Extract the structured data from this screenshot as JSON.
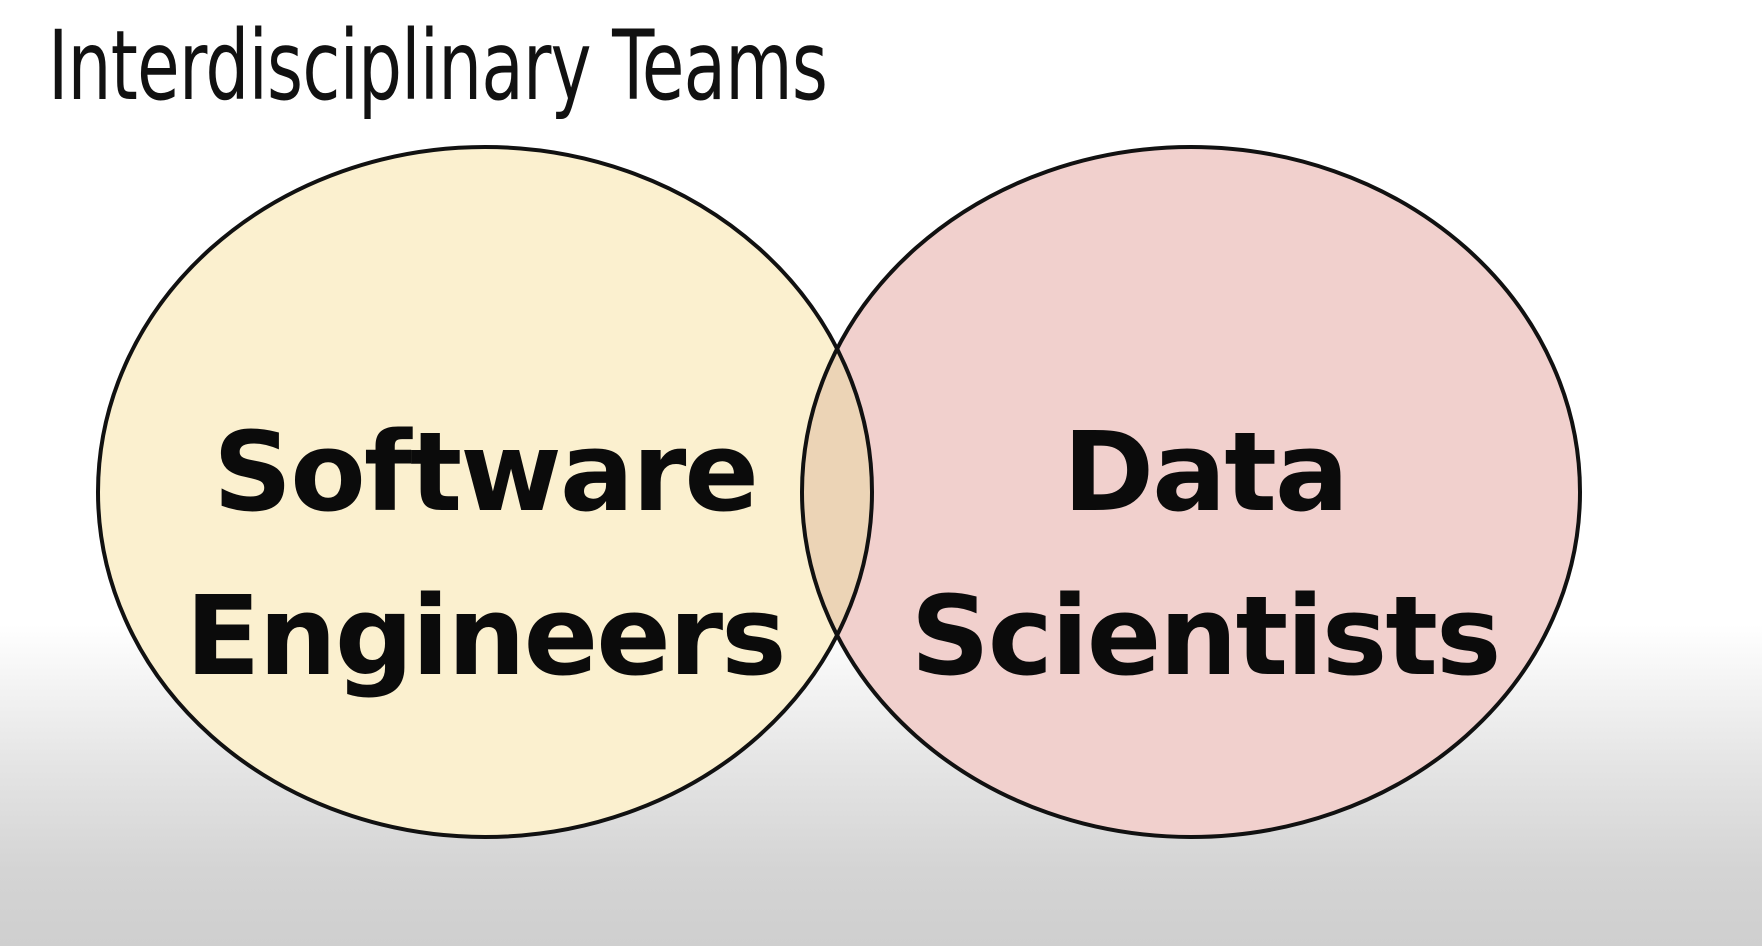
{
  "title": "Interdisciplinary Teams",
  "venn": {
    "left": {
      "line1": "Software",
      "line2": "Engineers",
      "fill": "#fbf0cf"
    },
    "right": {
      "line1": "Data",
      "line2": "Scientists",
      "fill": "#f1d0cd"
    },
    "overlap_fill": "#ecd4b6",
    "stroke": "#111111"
  }
}
